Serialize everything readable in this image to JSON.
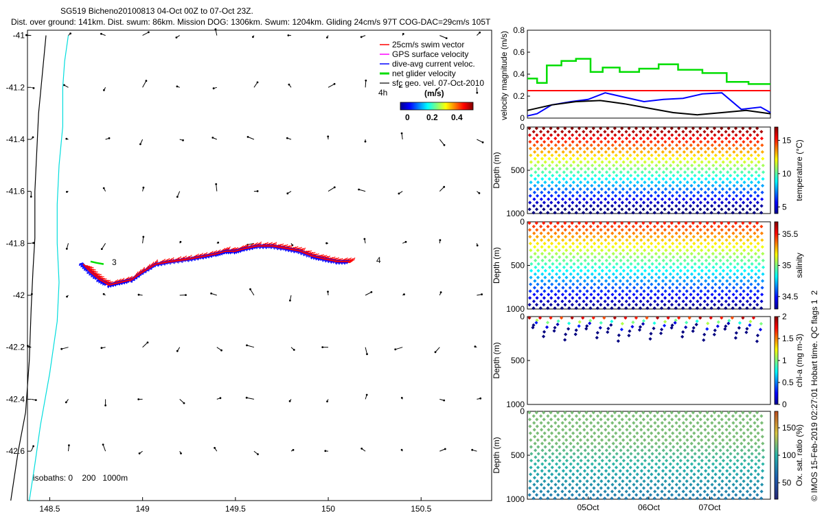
{
  "title": {
    "line1": "SG519 Bicheno20100813 04-Oct 00Z to 07-Oct 23Z.",
    "line2": "Dist. over ground: 141km. Dist. swum: 86km. Mission DOG: 1306km. Swum: 1204km. Gliding 24cm/s 97T COG-DAC=29cm/s 105T"
  },
  "colors": {
    "swim": "#ff0000",
    "gps": "#ff00ff",
    "dac": "#0000ff",
    "net": "#00dd00",
    "sfc": "#000000",
    "isobath200": "#00dddd",
    "isobath1000": "#000000"
  },
  "watermark": "© IMOS 15-Feb-2019 02:27:01 Hobart time. QC flags 1  2",
  "chart_data": [
    {
      "id": "track_map",
      "type": "scatter",
      "xticks": [
        "148.5",
        "149",
        "149.5",
        "150",
        "150.5"
      ],
      "yticks": [
        "-41",
        "-41.2",
        "-41.4",
        "-41.6",
        "-41.8",
        "-42",
        "-42.2",
        "-42.4",
        "-42.6"
      ],
      "xlim": [
        148.38,
        150.88
      ],
      "ylim": [
        -42.79,
        -40.98
      ],
      "legend": {
        "position": "top-right",
        "items": [
          {
            "label": "25cm/s swim vector",
            "color": "#ff0000"
          },
          {
            "label": "GPS surface velocity",
            "color": "#ff00ff"
          },
          {
            "label": "dive-avg current veloc.",
            "color": "#0000ff"
          },
          {
            "label": "net glider velocity",
            "color": "#00dd00"
          },
          {
            "label": "sfc geo. vel. 07-Oct-2010",
            "color": "#000000"
          }
        ],
        "scale_label": "4h"
      },
      "colorbar": {
        "label": "(m/s)",
        "ticks": [
          "0",
          "0.2",
          "0.4"
        ],
        "range": [
          0,
          0.5
        ]
      },
      "start_label": "3",
      "end_label": "4",
      "isobath_label": "isobaths: 0    200   1000m",
      "track": [
        [
          148.68,
          -41.88
        ],
        [
          148.72,
          -41.91
        ],
        [
          148.77,
          -41.94
        ],
        [
          148.82,
          -41.96
        ],
        [
          148.88,
          -41.95
        ],
        [
          148.94,
          -41.94
        ],
        [
          149.0,
          -41.91
        ],
        [
          149.07,
          -41.88
        ],
        [
          149.15,
          -41.87
        ],
        [
          149.25,
          -41.86
        ],
        [
          149.33,
          -41.85
        ],
        [
          149.4,
          -41.84
        ],
        [
          149.45,
          -41.83
        ],
        [
          149.5,
          -41.83
        ],
        [
          149.55,
          -41.82
        ],
        [
          149.62,
          -41.81
        ],
        [
          149.7,
          -41.81
        ],
        [
          149.78,
          -41.82
        ],
        [
          149.85,
          -41.83
        ],
        [
          149.92,
          -41.85
        ],
        [
          149.98,
          -41.86
        ],
        [
          150.05,
          -41.87
        ],
        [
          150.12,
          -41.87
        ]
      ],
      "net_track": [
        [
          148.72,
          -41.87
        ],
        [
          148.75,
          -41.875
        ],
        [
          148.79,
          -41.88
        ]
      ],
      "coast_0m": [
        [
          148.48,
          -41.0
        ],
        [
          148.46,
          -41.15
        ],
        [
          148.44,
          -41.3
        ],
        [
          148.43,
          -41.45
        ],
        [
          148.42,
          -41.6
        ],
        [
          148.42,
          -41.78
        ],
        [
          148.41,
          -41.9
        ],
        [
          148.4,
          -42.05
        ],
        [
          148.39,
          -42.25
        ],
        [
          148.37,
          -42.45
        ],
        [
          148.33,
          -42.6
        ],
        [
          148.29,
          -42.79
        ]
      ],
      "isobath_200m": [
        [
          148.6,
          -41.0
        ],
        [
          148.58,
          -41.1
        ],
        [
          148.57,
          -41.2
        ],
        [
          148.57,
          -41.35
        ],
        [
          148.55,
          -41.5
        ],
        [
          148.54,
          -41.65
        ],
        [
          148.54,
          -41.8
        ],
        [
          148.55,
          -41.95
        ],
        [
          148.54,
          -42.1
        ],
        [
          148.5,
          -42.3
        ],
        [
          148.45,
          -42.5
        ],
        [
          148.42,
          -42.65
        ],
        [
          148.39,
          -42.79
        ]
      ],
      "current_vectors": [
        {
          "lon": 148.4,
          "lat": -41.0,
          "u": 0.03,
          "v": 0.02
        },
        {
          "lon": 148.55,
          "lat": -41.0,
          "u": 0.0,
          "v": -0.03
        },
        {
          "lon": 148.7,
          "lat": -41.0,
          "u": 0.01,
          "v": 0.02
        },
        {
          "lon": 149.0,
          "lat": -41.0,
          "u": 0.01,
          "v": 0.02
        },
        {
          "lon": 149.3,
          "lat": -41.0,
          "u": 0.02,
          "v": -0.01
        },
        {
          "lon": 149.55,
          "lat": -41.0,
          "u": 0.02,
          "v": 0.0
        },
        {
          "lon": 149.8,
          "lat": -41.0,
          "u": 0.03,
          "v": -0.01
        },
        {
          "lon": 150.15,
          "lat": -41.0,
          "u": 0.02,
          "v": -0.02
        },
        {
          "lon": 150.55,
          "lat": -41.0,
          "u": 0.02,
          "v": -0.01
        }
      ]
    },
    {
      "id": "velocity",
      "type": "line",
      "ylabel": "velocity magnitude (m/s)",
      "ylim": [
        0,
        0.8
      ],
      "yticks": [
        "0",
        "0.2",
        "0.4",
        "0.6",
        "0.8"
      ],
      "xlim": [
        0,
        1
      ],
      "reference_line": 0.25,
      "series": [
        {
          "name": "net glider velocity",
          "color": "#00dd00",
          "x": [
            0,
            0.04,
            0.04,
            0.08,
            0.08,
            0.14,
            0.14,
            0.2,
            0.2,
            0.26,
            0.26,
            0.31,
            0.31,
            0.38,
            0.38,
            0.46,
            0.46,
            0.54,
            0.54,
            0.62,
            0.62,
            0.72,
            0.72,
            0.82,
            0.82,
            0.91,
            0.91,
            1.0
          ],
          "y": [
            0.36,
            0.36,
            0.32,
            0.32,
            0.48,
            0.48,
            0.52,
            0.52,
            0.54,
            0.54,
            0.42,
            0.42,
            0.46,
            0.46,
            0.42,
            0.42,
            0.45,
            0.45,
            0.49,
            0.49,
            0.44,
            0.44,
            0.41,
            0.41,
            0.33,
            0.33,
            0.31,
            0.31
          ]
        },
        {
          "name": "dive-avg current veloc.",
          "color": "#0000ff",
          "x": [
            0,
            0.04,
            0.1,
            0.18,
            0.25,
            0.32,
            0.4,
            0.48,
            0.56,
            0.64,
            0.72,
            0.8,
            0.88,
            0.96,
            1.0
          ],
          "y": [
            0.02,
            0.04,
            0.12,
            0.15,
            0.17,
            0.23,
            0.19,
            0.15,
            0.17,
            0.18,
            0.22,
            0.23,
            0.08,
            0.1,
            0.05
          ]
        },
        {
          "name": "sfc geo. velocity",
          "color": "#000000",
          "x": [
            0,
            0.1,
            0.2,
            0.3,
            0.4,
            0.5,
            0.6,
            0.7,
            0.8,
            0.9,
            1.0
          ],
          "y": [
            0.07,
            0.12,
            0.15,
            0.16,
            0.13,
            0.09,
            0.05,
            0.03,
            0.05,
            0.07,
            0.04
          ]
        }
      ]
    },
    {
      "id": "temperature",
      "type": "scatter",
      "ylabel": "Depth (m)",
      "ylim": [
        0,
        1000
      ],
      "yticks": [
        "0",
        "500",
        "1000"
      ],
      "colorbar_label": "temperature (°C)",
      "colorbar_ticks": [
        "5",
        "10",
        "15"
      ],
      "clim": [
        4,
        17
      ],
      "profiles": 33,
      "max_depth": 1000
    },
    {
      "id": "salinity",
      "type": "scatter",
      "ylabel": "Depth (m)",
      "ylim": [
        0,
        1000
      ],
      "yticks": [
        "0",
        "500",
        "1000"
      ],
      "colorbar_label": "salinity",
      "colorbar_ticks": [
        "34.5",
        "35",
        "35.5"
      ],
      "clim": [
        34.3,
        35.7
      ],
      "profiles": 33,
      "max_depth": 1000
    },
    {
      "id": "chla",
      "type": "scatter",
      "ylabel": "Depth (m)",
      "ylim": [
        0,
        1000
      ],
      "yticks": [
        "0",
        "500",
        "1000"
      ],
      "colorbar_label": "chl-a (mg m-3)",
      "colorbar_ticks": [
        "0",
        "0.5",
        "1",
        "1.5",
        "2"
      ],
      "clim": [
        0,
        2
      ],
      "profiles": 22,
      "max_depth": 300
    },
    {
      "id": "oxygen",
      "type": "scatter",
      "ylabel": "Depth (m)",
      "ylim": [
        0,
        1000
      ],
      "yticks": [
        "0",
        "500",
        "1000"
      ],
      "xticks": [
        "05Oct",
        "06Oct",
        "07Oct"
      ],
      "colorbar_label": "Ox. sat. ratio (%)",
      "colorbar_ticks": [
        "50",
        "100",
        "150"
      ],
      "clim": [
        20,
        180
      ],
      "profiles": 33,
      "max_depth": 1000
    }
  ]
}
